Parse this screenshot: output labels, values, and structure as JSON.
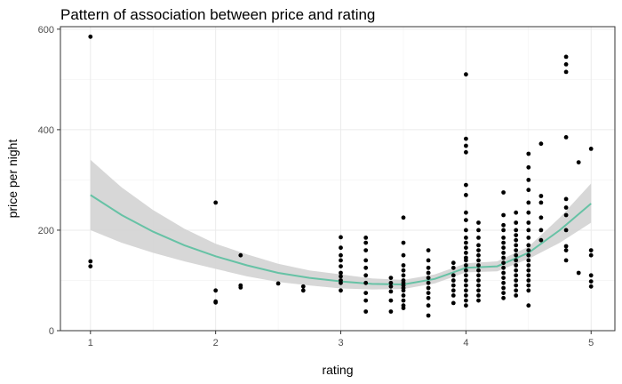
{
  "chart_data": {
    "type": "scatter",
    "title": "Pattern of association between price and rating",
    "xlabel": "rating",
    "ylabel": "price per night",
    "xlim": [
      0.76,
      5.19
    ],
    "ylim": [
      0,
      605
    ],
    "xticks": [
      1,
      2,
      3,
      4,
      5
    ],
    "yticks": [
      0,
      200,
      400,
      600
    ],
    "grid": true,
    "legend": "none",
    "colors": {
      "points": "#000000",
      "smooth_line": "#66c2a5",
      "ribbon": "#d3d3d3"
    },
    "points": [
      {
        "x": 1,
        "y": 585
      },
      {
        "x": 1,
        "y": 138
      },
      {
        "x": 1,
        "y": 128
      },
      {
        "x": 2,
        "y": 255
      },
      {
        "x": 2,
        "y": 80
      },
      {
        "x": 2,
        "y": 58
      },
      {
        "x": 2,
        "y": 56
      },
      {
        "x": 2.2,
        "y": 150
      },
      {
        "x": 2.2,
        "y": 90
      },
      {
        "x": 2.2,
        "y": 86
      },
      {
        "x": 2.5,
        "y": 94
      },
      {
        "x": 2.7,
        "y": 88
      },
      {
        "x": 2.7,
        "y": 80
      },
      {
        "x": 3,
        "y": 186
      },
      {
        "x": 3,
        "y": 165
      },
      {
        "x": 3,
        "y": 150
      },
      {
        "x": 3,
        "y": 140
      },
      {
        "x": 3,
        "y": 128
      },
      {
        "x": 3,
        "y": 115
      },
      {
        "x": 3,
        "y": 108
      },
      {
        "x": 3,
        "y": 100
      },
      {
        "x": 3,
        "y": 95
      },
      {
        "x": 3,
        "y": 80
      },
      {
        "x": 3.2,
        "y": 185
      },
      {
        "x": 3.2,
        "y": 175
      },
      {
        "x": 3.2,
        "y": 160
      },
      {
        "x": 3.2,
        "y": 140
      },
      {
        "x": 3.2,
        "y": 125
      },
      {
        "x": 3.2,
        "y": 110
      },
      {
        "x": 3.2,
        "y": 95
      },
      {
        "x": 3.2,
        "y": 75
      },
      {
        "x": 3.2,
        "y": 60
      },
      {
        "x": 3.2,
        "y": 38
      },
      {
        "x": 3.4,
        "y": 105
      },
      {
        "x": 3.4,
        "y": 95
      },
      {
        "x": 3.4,
        "y": 88
      },
      {
        "x": 3.4,
        "y": 78
      },
      {
        "x": 3.4,
        "y": 60
      },
      {
        "x": 3.4,
        "y": 38
      },
      {
        "x": 3.5,
        "y": 225
      },
      {
        "x": 3.5,
        "y": 175
      },
      {
        "x": 3.5,
        "y": 150
      },
      {
        "x": 3.5,
        "y": 130
      },
      {
        "x": 3.5,
        "y": 120
      },
      {
        "x": 3.5,
        "y": 110
      },
      {
        "x": 3.5,
        "y": 100
      },
      {
        "x": 3.5,
        "y": 95
      },
      {
        "x": 3.5,
        "y": 90
      },
      {
        "x": 3.5,
        "y": 85
      },
      {
        "x": 3.5,
        "y": 80
      },
      {
        "x": 3.5,
        "y": 70
      },
      {
        "x": 3.5,
        "y": 60
      },
      {
        "x": 3.5,
        "y": 50
      },
      {
        "x": 3.5,
        "y": 45
      },
      {
        "x": 3.7,
        "y": 160
      },
      {
        "x": 3.7,
        "y": 140
      },
      {
        "x": 3.7,
        "y": 125
      },
      {
        "x": 3.7,
        "y": 115
      },
      {
        "x": 3.7,
        "y": 105
      },
      {
        "x": 3.7,
        "y": 95
      },
      {
        "x": 3.7,
        "y": 85
      },
      {
        "x": 3.7,
        "y": 75
      },
      {
        "x": 3.7,
        "y": 65
      },
      {
        "x": 3.7,
        "y": 50
      },
      {
        "x": 3.7,
        "y": 30
      },
      {
        "x": 3.9,
        "y": 135
      },
      {
        "x": 3.9,
        "y": 125
      },
      {
        "x": 3.9,
        "y": 110
      },
      {
        "x": 3.9,
        "y": 100
      },
      {
        "x": 3.9,
        "y": 90
      },
      {
        "x": 3.9,
        "y": 80
      },
      {
        "x": 3.9,
        "y": 70
      },
      {
        "x": 3.9,
        "y": 55
      },
      {
        "x": 4,
        "y": 510
      },
      {
        "x": 4,
        "y": 382
      },
      {
        "x": 4,
        "y": 368
      },
      {
        "x": 4,
        "y": 355
      },
      {
        "x": 4,
        "y": 290
      },
      {
        "x": 4,
        "y": 270
      },
      {
        "x": 4,
        "y": 235
      },
      {
        "x": 4,
        "y": 220
      },
      {
        "x": 4,
        "y": 200
      },
      {
        "x": 4,
        "y": 185
      },
      {
        "x": 4,
        "y": 175
      },
      {
        "x": 4,
        "y": 165
      },
      {
        "x": 4,
        "y": 155
      },
      {
        "x": 4,
        "y": 145
      },
      {
        "x": 4,
        "y": 140
      },
      {
        "x": 4,
        "y": 130
      },
      {
        "x": 4,
        "y": 120
      },
      {
        "x": 4,
        "y": 110
      },
      {
        "x": 4,
        "y": 100
      },
      {
        "x": 4,
        "y": 90
      },
      {
        "x": 4,
        "y": 80
      },
      {
        "x": 4,
        "y": 70
      },
      {
        "x": 4,
        "y": 60
      },
      {
        "x": 4,
        "y": 50
      },
      {
        "x": 4.1,
        "y": 215
      },
      {
        "x": 4.1,
        "y": 200
      },
      {
        "x": 4.1,
        "y": 185
      },
      {
        "x": 4.1,
        "y": 170
      },
      {
        "x": 4.1,
        "y": 160
      },
      {
        "x": 4.1,
        "y": 150
      },
      {
        "x": 4.1,
        "y": 140
      },
      {
        "x": 4.1,
        "y": 130
      },
      {
        "x": 4.1,
        "y": 120
      },
      {
        "x": 4.1,
        "y": 110
      },
      {
        "x": 4.1,
        "y": 100
      },
      {
        "x": 4.1,
        "y": 90
      },
      {
        "x": 4.1,
        "y": 80
      },
      {
        "x": 4.1,
        "y": 70
      },
      {
        "x": 4.1,
        "y": 60
      },
      {
        "x": 4.3,
        "y": 275
      },
      {
        "x": 4.3,
        "y": 230
      },
      {
        "x": 4.3,
        "y": 210
      },
      {
        "x": 4.3,
        "y": 200
      },
      {
        "x": 4.3,
        "y": 185
      },
      {
        "x": 4.3,
        "y": 175
      },
      {
        "x": 4.3,
        "y": 165
      },
      {
        "x": 4.3,
        "y": 155
      },
      {
        "x": 4.3,
        "y": 145
      },
      {
        "x": 4.3,
        "y": 135
      },
      {
        "x": 4.3,
        "y": 125
      },
      {
        "x": 4.3,
        "y": 115
      },
      {
        "x": 4.3,
        "y": 105
      },
      {
        "x": 4.3,
        "y": 95
      },
      {
        "x": 4.3,
        "y": 85
      },
      {
        "x": 4.3,
        "y": 75
      },
      {
        "x": 4.3,
        "y": 65
      },
      {
        "x": 4.4,
        "y": 235
      },
      {
        "x": 4.4,
        "y": 215
      },
      {
        "x": 4.4,
        "y": 200
      },
      {
        "x": 4.4,
        "y": 190
      },
      {
        "x": 4.4,
        "y": 180
      },
      {
        "x": 4.4,
        "y": 170
      },
      {
        "x": 4.4,
        "y": 160
      },
      {
        "x": 4.4,
        "y": 150
      },
      {
        "x": 4.4,
        "y": 140
      },
      {
        "x": 4.4,
        "y": 130
      },
      {
        "x": 4.4,
        "y": 120
      },
      {
        "x": 4.4,
        "y": 110
      },
      {
        "x": 4.4,
        "y": 100
      },
      {
        "x": 4.4,
        "y": 90
      },
      {
        "x": 4.4,
        "y": 80
      },
      {
        "x": 4.4,
        "y": 70
      },
      {
        "x": 4.5,
        "y": 352
      },
      {
        "x": 4.5,
        "y": 325
      },
      {
        "x": 4.5,
        "y": 300
      },
      {
        "x": 4.5,
        "y": 280
      },
      {
        "x": 4.5,
        "y": 255
      },
      {
        "x": 4.5,
        "y": 235
      },
      {
        "x": 4.5,
        "y": 215
      },
      {
        "x": 4.5,
        "y": 200
      },
      {
        "x": 4.5,
        "y": 185
      },
      {
        "x": 4.5,
        "y": 170
      },
      {
        "x": 4.5,
        "y": 160
      },
      {
        "x": 4.5,
        "y": 150
      },
      {
        "x": 4.5,
        "y": 140
      },
      {
        "x": 4.5,
        "y": 130
      },
      {
        "x": 4.5,
        "y": 120
      },
      {
        "x": 4.5,
        "y": 110
      },
      {
        "x": 4.5,
        "y": 100
      },
      {
        "x": 4.5,
        "y": 90
      },
      {
        "x": 4.5,
        "y": 80
      },
      {
        "x": 4.5,
        "y": 50
      },
      {
        "x": 4.6,
        "y": 372
      },
      {
        "x": 4.6,
        "y": 268
      },
      {
        "x": 4.6,
        "y": 255
      },
      {
        "x": 4.6,
        "y": 225
      },
      {
        "x": 4.6,
        "y": 200
      },
      {
        "x": 4.6,
        "y": 180
      },
      {
        "x": 4.8,
        "y": 545
      },
      {
        "x": 4.8,
        "y": 530
      },
      {
        "x": 4.8,
        "y": 515
      },
      {
        "x": 4.8,
        "y": 385
      },
      {
        "x": 4.8,
        "y": 262
      },
      {
        "x": 4.8,
        "y": 245
      },
      {
        "x": 4.8,
        "y": 230
      },
      {
        "x": 4.8,
        "y": 200
      },
      {
        "x": 4.8,
        "y": 168
      },
      {
        "x": 4.8,
        "y": 160
      },
      {
        "x": 4.8,
        "y": 140
      },
      {
        "x": 4.9,
        "y": 335
      },
      {
        "x": 4.9,
        "y": 115
      },
      {
        "x": 5,
        "y": 362
      },
      {
        "x": 5,
        "y": 160
      },
      {
        "x": 5,
        "y": 150
      },
      {
        "x": 5,
        "y": 110
      },
      {
        "x": 5,
        "y": 98
      },
      {
        "x": 5,
        "y": 88
      }
    ],
    "smooth": {
      "x": [
        1,
        1.25,
        1.5,
        1.75,
        2,
        2.25,
        2.5,
        2.75,
        3,
        3.25,
        3.5,
        3.75,
        4,
        4.25,
        4.5,
        4.75,
        5
      ],
      "y": [
        270,
        230,
        197,
        170,
        148,
        130,
        115,
        105,
        98,
        93,
        92,
        103,
        125,
        128,
        155,
        200,
        253
      ],
      "lo": [
        200,
        175,
        155,
        138,
        123,
        108,
        97,
        90,
        84,
        82,
        83,
        94,
        116,
        118,
        143,
        175,
        215
      ],
      "hi": [
        340,
        285,
        240,
        203,
        173,
        152,
        133,
        120,
        112,
        104,
        101,
        112,
        134,
        138,
        167,
        225,
        293
      ]
    }
  }
}
